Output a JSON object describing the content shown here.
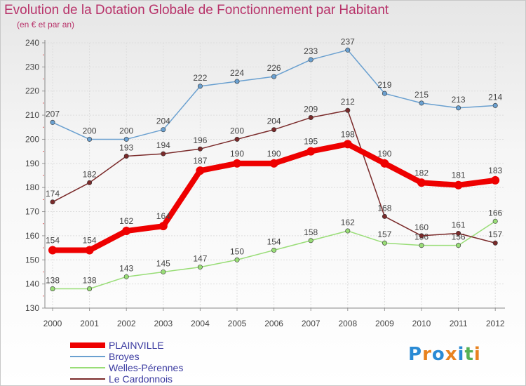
{
  "title": "Evolution de la Dotation Globale de Fonctionnement par Habitant",
  "subtitle": "(en € et par an)",
  "logo": "Proxiti",
  "chart_data": {
    "type": "line",
    "x": [
      "2000",
      "2001",
      "2002",
      "2003",
      "2004",
      "2005",
      "2006",
      "2007",
      "2008",
      "2009",
      "2010",
      "2011",
      "2012"
    ],
    "ylim": [
      130,
      240
    ],
    "yticks": [
      130,
      140,
      150,
      160,
      170,
      180,
      190,
      200,
      210,
      220,
      230,
      240
    ],
    "grid": true,
    "legend": "bottom-left",
    "series": [
      {
        "name": "PLAINVILLE",
        "color": "#ee0000",
        "values": [
          154,
          154,
          162,
          164,
          187,
          190,
          190,
          195,
          198,
          190,
          182,
          181,
          183
        ]
      },
      {
        "name": "Broyes",
        "color": "#6aa0d0",
        "values": [
          207,
          200,
          200,
          204,
          222,
          224,
          226,
          233,
          237,
          219,
          215,
          213,
          214
        ]
      },
      {
        "name": "Welles-Pérennes",
        "color": "#99dd77",
        "values": [
          138,
          138,
          143,
          145,
          147,
          150,
          154,
          158,
          162,
          157,
          156,
          156,
          166
        ]
      },
      {
        "name": "Le Cardonnois",
        "color": "#7a2a2a",
        "values": [
          174,
          182,
          193,
          194,
          196,
          200,
          204,
          209,
          212,
          168,
          160,
          161,
          157
        ]
      }
    ]
  }
}
